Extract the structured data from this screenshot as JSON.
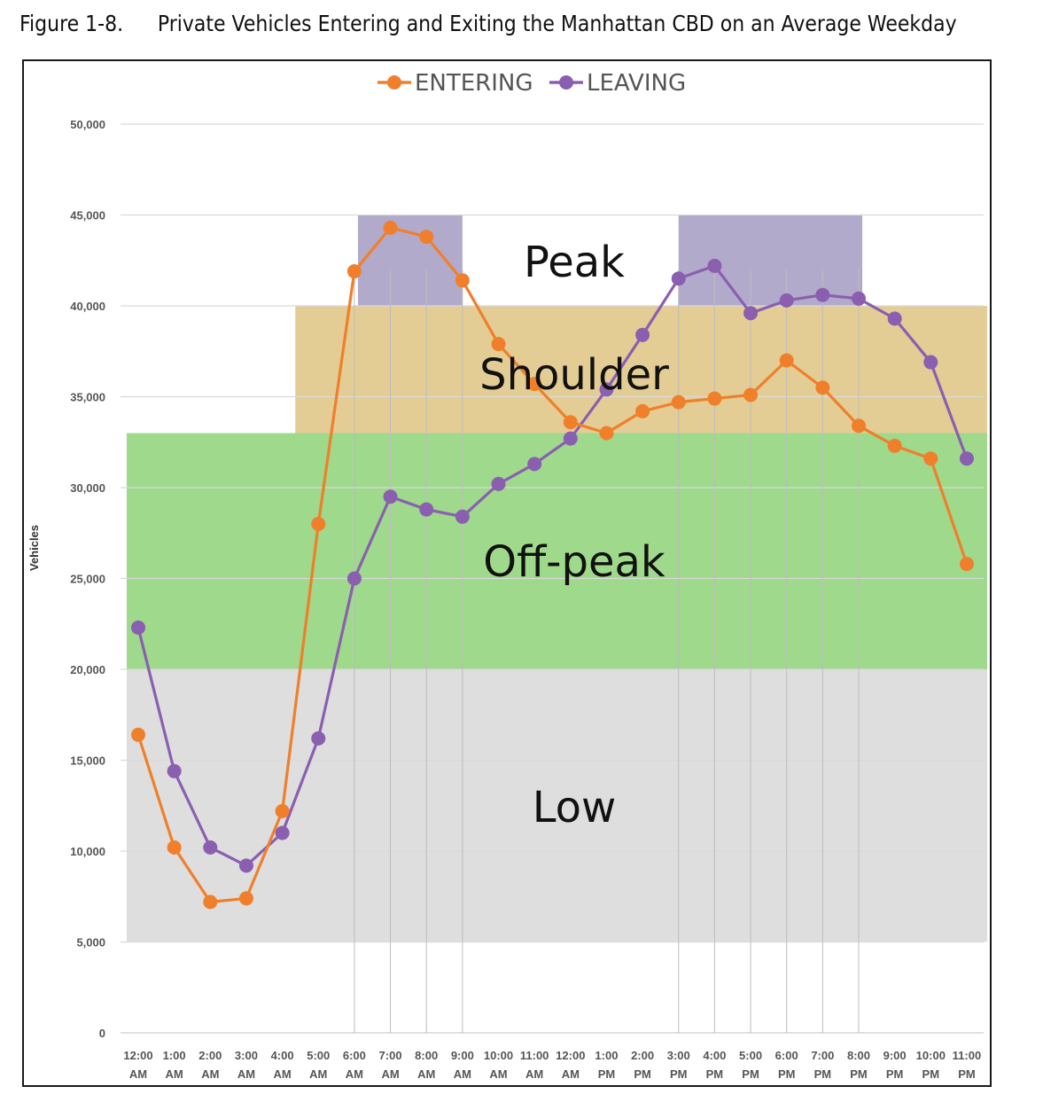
{
  "figure": {
    "number": "Figure 1-8.",
    "title": "Private Vehicles Entering and Exiting the Manhattan CBD on an Average Weekday"
  },
  "chart_data": {
    "type": "line",
    "title": "",
    "xlabel": "",
    "ylabel": "Vehicles",
    "ylim": [
      0,
      50000
    ],
    "yticks": [
      "0",
      "5,000",
      "10,000",
      "15,000",
      "20,000",
      "25,000",
      "30,000",
      "35,000",
      "40,000",
      "45,000",
      "50,000"
    ],
    "x": [
      {
        "time": "12:00",
        "period": "AM"
      },
      {
        "time": "1:00",
        "period": "AM"
      },
      {
        "time": "2:00",
        "period": "AM"
      },
      {
        "time": "3:00",
        "period": "AM"
      },
      {
        "time": "4:00",
        "period": "AM"
      },
      {
        "time": "5:00",
        "period": "AM"
      },
      {
        "time": "6:00",
        "period": "AM"
      },
      {
        "time": "7:00",
        "period": "AM"
      },
      {
        "time": "8:00",
        "period": "AM"
      },
      {
        "time": "9:00",
        "period": "AM"
      },
      {
        "time": "10:00",
        "period": "AM"
      },
      {
        "time": "11:00",
        "period": "AM"
      },
      {
        "time": "12:00",
        "period": "AM"
      },
      {
        "time": "1:00",
        "period": "PM"
      },
      {
        "time": "2:00",
        "period": "PM"
      },
      {
        "time": "3:00",
        "period": "PM"
      },
      {
        "time": "4:00",
        "period": "PM"
      },
      {
        "time": "5:00",
        "period": "PM"
      },
      {
        "time": "6:00",
        "period": "PM"
      },
      {
        "time": "7:00",
        "period": "PM"
      },
      {
        "time": "8:00",
        "period": "PM"
      },
      {
        "time": "9:00",
        "period": "PM"
      },
      {
        "time": "10:00",
        "period": "PM"
      },
      {
        "time": "11:00",
        "period": "PM"
      }
    ],
    "series": [
      {
        "name": "ENTERING",
        "color": "#f07f2b",
        "values": [
          16400,
          10200,
          7200,
          7400,
          12200,
          28000,
          41900,
          44300,
          43800,
          41400,
          37900,
          35700,
          33600,
          33000,
          34200,
          34700,
          34900,
          35100,
          37000,
          35500,
          33400,
          32300,
          31600,
          25800
        ]
      },
      {
        "name": "LEAVING",
        "color": "#8a5fb0",
        "values": [
          22300,
          14400,
          10200,
          9200,
          11000,
          16200,
          25000,
          29500,
          28800,
          28400,
          30200,
          31300,
          32700,
          35400,
          38400,
          41500,
          42200,
          39600,
          40300,
          40600,
          40400,
          39300,
          36900,
          31600
        ]
      }
    ],
    "legend": "top-center",
    "grid": true,
    "bands": [
      {
        "label": "Low",
        "range": [
          5000,
          20000
        ],
        "color": "#dedede",
        "xrange": [
          0,
          23
        ]
      },
      {
        "label": "Off-peak",
        "range": [
          20000,
          33000
        ],
        "color": "#9fd98b",
        "xrange": [
          0,
          23
        ]
      },
      {
        "label": "Shoulder",
        "range": [
          33000,
          40000
        ],
        "color": "#e3cd95",
        "xrange": [
          5,
          23
        ]
      },
      {
        "label": "Peak",
        "range": [
          40000,
          45000
        ],
        "color": "#b2aacb",
        "xrange": [
          6.1,
          9
        ]
      },
      {
        "label": "Peak",
        "range": [
          40000,
          45000
        ],
        "color": "#b2aacb",
        "xrange": [
          15,
          20.1
        ]
      }
    ]
  }
}
